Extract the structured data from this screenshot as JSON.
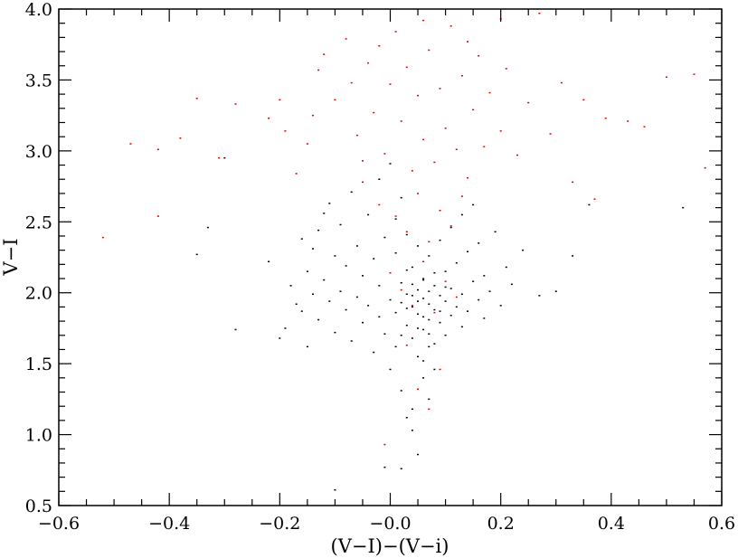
{
  "chart_data": {
    "type": "scatter",
    "title": "",
    "xlabel": "(V−I)−(V−i)",
    "ylabel": "V−I",
    "xlim": [
      -0.6,
      0.6
    ],
    "ylim": [
      0.5,
      4.0
    ],
    "x_ticks": [
      "−0.6",
      "−0.4",
      "−0.2",
      "−0.0",
      "0.2",
      "0.4",
      "0.6"
    ],
    "y_ticks": [
      "0.5",
      "1.0",
      "1.5",
      "2.0",
      "2.5",
      "3.0",
      "3.5",
      "4.0"
    ],
    "grid": false,
    "legend": "none",
    "colors": {
      "group_black": "#000000",
      "group_red": "#e00000"
    },
    "series": [
      {
        "color": "#000000",
        "points": [
          [
            -0.3,
            2.95
          ],
          [
            -0.33,
            2.46
          ],
          [
            -0.35,
            2.27
          ],
          [
            -0.28,
            1.74
          ],
          [
            -0.22,
            2.22
          ],
          [
            -0.2,
            1.68
          ],
          [
            -0.19,
            1.75
          ],
          [
            -0.18,
            2.05
          ],
          [
            -0.17,
            1.92
          ],
          [
            -0.16,
            2.38
          ],
          [
            -0.16,
            1.87
          ],
          [
            -0.15,
            2.15
          ],
          [
            -0.15,
            1.62
          ],
          [
            -0.14,
            2.31
          ],
          [
            -0.14,
            1.99
          ],
          [
            -0.13,
            2.44
          ],
          [
            -0.13,
            1.81
          ],
          [
            -0.12,
            2.09
          ],
          [
            -0.12,
            2.56
          ],
          [
            -0.11,
            1.94
          ],
          [
            -0.11,
            2.63
          ],
          [
            -0.1,
            2.26
          ],
          [
            -0.1,
            1.72
          ],
          [
            -0.09,
            2.01
          ],
          [
            -0.09,
            2.48
          ],
          [
            -0.08,
            1.88
          ],
          [
            -0.08,
            2.19
          ],
          [
            -0.07,
            2.71
          ],
          [
            -0.07,
            1.66
          ],
          [
            -0.06,
            2.33
          ],
          [
            -0.06,
            1.97
          ],
          [
            -0.05,
            2.12
          ],
          [
            -0.05,
            1.79
          ],
          [
            -0.04,
            2.55
          ],
          [
            -0.04,
            1.91
          ],
          [
            -0.03,
            2.24
          ],
          [
            -0.03,
            1.58
          ],
          [
            -0.02,
            2.05
          ],
          [
            -0.02,
            1.83
          ],
          [
            -0.01,
            2.39
          ],
          [
            -0.01,
            1.71
          ],
          [
            0.0,
            2.14
          ],
          [
            0.0,
            1.95
          ],
          [
            0.0,
            1.46
          ],
          [
            0.01,
            2.28
          ],
          [
            0.01,
            1.86
          ],
          [
            0.01,
            1.62
          ],
          [
            0.02,
            2.07
          ],
          [
            0.02,
            1.93
          ],
          [
            0.02,
            1.31
          ],
          [
            0.03,
            2.41
          ],
          [
            0.03,
            1.99
          ],
          [
            0.03,
            1.77
          ],
          [
            0.03,
            1.12
          ],
          [
            0.04,
            2.18
          ],
          [
            0.04,
            1.9
          ],
          [
            0.04,
            1.68
          ],
          [
            0.04,
            1.03
          ],
          [
            0.05,
            2.33
          ],
          [
            0.05,
            2.02
          ],
          [
            0.05,
            1.85
          ],
          [
            0.05,
            1.55
          ],
          [
            0.05,
            0.86
          ],
          [
            0.06,
            2.1
          ],
          [
            0.06,
            1.96
          ],
          [
            0.06,
            1.74
          ],
          [
            0.06,
            1.4
          ],
          [
            0.07,
            2.26
          ],
          [
            0.07,
            1.92
          ],
          [
            0.07,
            1.81
          ],
          [
            0.07,
            1.25
          ],
          [
            0.08,
            2.05
          ],
          [
            0.08,
            1.88
          ],
          [
            0.08,
            1.64
          ],
          [
            0.09,
            2.37
          ],
          [
            0.09,
            1.98
          ],
          [
            0.09,
            1.79
          ],
          [
            0.1,
            2.15
          ],
          [
            0.1,
            1.94
          ],
          [
            0.1,
            1.7
          ],
          [
            0.11,
            2.46
          ],
          [
            0.11,
            2.03
          ],
          [
            0.11,
            1.84
          ],
          [
            0.12,
            2.21
          ],
          [
            0.12,
            1.9
          ],
          [
            0.13,
            2.55
          ],
          [
            0.13,
            1.99
          ],
          [
            0.13,
            1.76
          ],
          [
            0.14,
            2.29
          ],
          [
            0.14,
            1.87
          ],
          [
            0.15,
            2.08
          ],
          [
            0.15,
            2.62
          ],
          [
            0.16,
            1.95
          ],
          [
            0.16,
            2.35
          ],
          [
            0.17,
            1.82
          ],
          [
            0.17,
            2.12
          ],
          [
            0.18,
            2.01
          ],
          [
            0.19,
            2.43
          ],
          [
            0.2,
            1.91
          ],
          [
            0.21,
            2.18
          ],
          [
            0.22,
            2.06
          ],
          [
            0.24,
            2.3
          ],
          [
            0.27,
            1.98
          ],
          [
            0.3,
            2.01
          ],
          [
            0.33,
            2.26
          ],
          [
            0.36,
            2.62
          ],
          [
            0.53,
            2.6
          ],
          [
            -0.01,
            0.77
          ],
          [
            0.02,
            0.76
          ],
          [
            -0.1,
            0.61
          ],
          [
            0.04,
            1.18
          ],
          [
            0.06,
            1.52
          ],
          [
            0.07,
            1.62
          ],
          [
            0.08,
            1.46
          ],
          [
            0.02,
            1.7
          ],
          [
            0.03,
            1.89
          ],
          [
            0.04,
            2.06
          ],
          [
            0.05,
            1.94
          ],
          [
            0.06,
            1.83
          ],
          [
            0.07,
            2.01
          ],
          [
            0.08,
            2.14
          ],
          [
            0.09,
            1.87
          ],
          [
            0.1,
            2.04
          ],
          [
            0.05,
            1.75
          ],
          [
            0.04,
            1.98
          ],
          [
            0.06,
            2.09
          ],
          [
            0.03,
            2.16
          ],
          [
            0.07,
            1.71
          ],
          [
            0.01,
            2.52
          ],
          [
            0.02,
            2.67
          ],
          [
            -0.02,
            2.8
          ],
          [
            0.0,
            2.91
          ]
        ]
      },
      {
        "color": "#e00000",
        "points": [
          [
            -0.52,
            2.39
          ],
          [
            -0.47,
            3.05
          ],
          [
            -0.42,
            3.01
          ],
          [
            -0.42,
            2.54
          ],
          [
            -0.38,
            3.09
          ],
          [
            -0.35,
            3.37
          ],
          [
            -0.31,
            2.95
          ],
          [
            -0.28,
            3.33
          ],
          [
            -0.22,
            3.23
          ],
          [
            -0.2,
            3.36
          ],
          [
            -0.19,
            3.14
          ],
          [
            -0.17,
            2.84
          ],
          [
            -0.15,
            3.05
          ],
          [
            -0.14,
            3.25
          ],
          [
            -0.13,
            3.57
          ],
          [
            -0.12,
            3.68
          ],
          [
            -0.1,
            3.36
          ],
          [
            -0.08,
            3.79
          ],
          [
            -0.07,
            3.48
          ],
          [
            -0.06,
            3.11
          ],
          [
            -0.05,
            2.93
          ],
          [
            -0.04,
            3.62
          ],
          [
            -0.03,
            3.27
          ],
          [
            -0.02,
            3.74
          ],
          [
            -0.01,
            2.98
          ],
          [
            0.0,
            3.47
          ],
          [
            0.01,
            3.84
          ],
          [
            0.02,
            3.21
          ],
          [
            0.03,
            3.59
          ],
          [
            0.04,
            2.86
          ],
          [
            0.05,
            3.39
          ],
          [
            0.06,
            3.08
          ],
          [
            0.07,
            3.71
          ],
          [
            0.08,
            2.92
          ],
          [
            0.09,
            3.44
          ],
          [
            0.1,
            3.16
          ],
          [
            0.11,
            3.88
          ],
          [
            0.12,
            3.01
          ],
          [
            0.13,
            3.53
          ],
          [
            0.14,
            2.81
          ],
          [
            0.15,
            3.29
          ],
          [
            0.16,
            3.67
          ],
          [
            0.17,
            3.03
          ],
          [
            0.18,
            3.41
          ],
          [
            0.2,
            3.14
          ],
          [
            0.21,
            3.58
          ],
          [
            0.23,
            2.97
          ],
          [
            0.25,
            3.34
          ],
          [
            0.27,
            3.97
          ],
          [
            0.29,
            3.12
          ],
          [
            0.31,
            3.48
          ],
          [
            0.33,
            2.78
          ],
          [
            0.35,
            3.36
          ],
          [
            0.37,
            2.66
          ],
          [
            0.39,
            3.23
          ],
          [
            0.43,
            3.21
          ],
          [
            0.46,
            3.17
          ],
          [
            0.5,
            3.52
          ],
          [
            0.55,
            3.54
          ],
          [
            0.57,
            2.88
          ],
          [
            -0.02,
            2.62
          ],
          [
            0.01,
            2.54
          ],
          [
            0.03,
            2.43
          ],
          [
            0.05,
            2.7
          ],
          [
            0.07,
            2.36
          ],
          [
            0.09,
            2.58
          ],
          [
            0.11,
            2.47
          ],
          [
            0.13,
            2.68
          ],
          [
            0.0,
            2.14
          ],
          [
            0.02,
            2.02
          ],
          [
            0.04,
            1.91
          ],
          [
            0.06,
            2.22
          ],
          [
            0.08,
            1.86
          ],
          [
            0.1,
            2.08
          ],
          [
            0.12,
            1.97
          ],
          [
            0.03,
            1.63
          ],
          [
            0.05,
            1.32
          ],
          [
            0.07,
            1.18
          ],
          [
            -0.01,
            0.93
          ],
          [
            0.09,
            1.46
          ],
          [
            -0.05,
            2.78
          ],
          [
            0.06,
            3.92
          ],
          [
            0.2,
            3.93
          ],
          [
            0.14,
            3.77
          ]
        ]
      }
    ]
  }
}
